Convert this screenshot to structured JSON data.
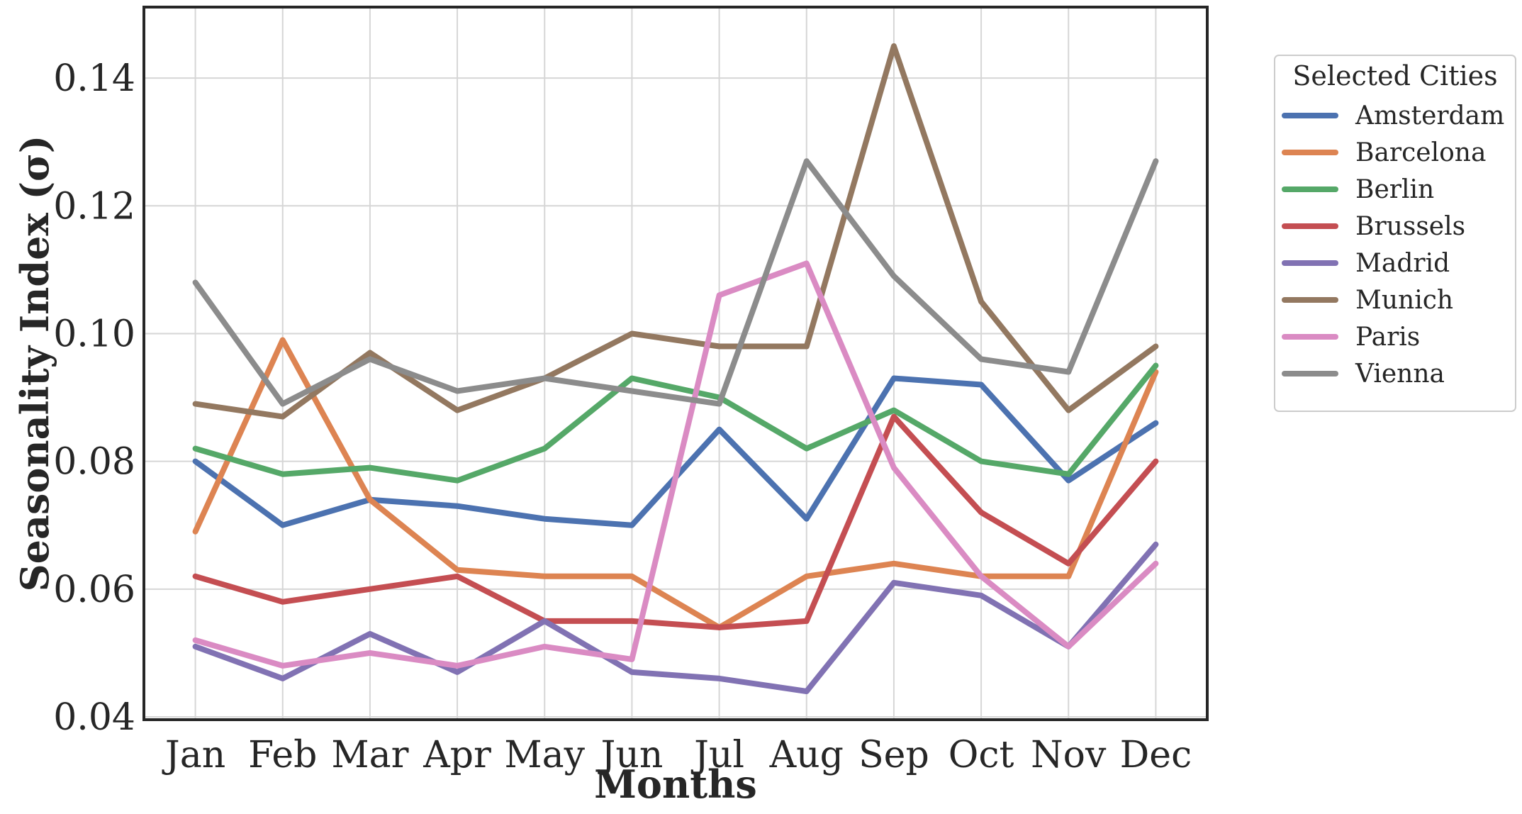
{
  "chart_data": {
    "type": "line",
    "title": "",
    "xlabel": "Months",
    "ylabel": "Seasonality Index (σ)",
    "categories": [
      "Jan",
      "Feb",
      "Mar",
      "Apr",
      "May",
      "Jun",
      "Jul",
      "Aug",
      "Sep",
      "Oct",
      "Nov",
      "Dec"
    ],
    "ylim": [
      0.04,
      0.15
    ],
    "yticks": [
      "0.04",
      "0.06",
      "0.08",
      "0.10",
      "0.12",
      "0.14"
    ],
    "grid": true,
    "legend": {
      "title": "Selected Cities",
      "placement": "outside-right-top"
    },
    "series": [
      {
        "name": "Amsterdam",
        "color": "#4c72b0",
        "values": [
          0.08,
          0.07,
          0.074,
          0.073,
          0.071,
          0.07,
          0.085,
          0.071,
          0.093,
          0.092,
          0.077,
          0.086
        ]
      },
      {
        "name": "Barcelona",
        "color": "#dd8452",
        "values": [
          0.069,
          0.099,
          0.074,
          0.063,
          0.062,
          0.062,
          0.054,
          0.062,
          0.064,
          0.062,
          0.062,
          0.094
        ]
      },
      {
        "name": "Berlin",
        "color": "#55a868",
        "values": [
          0.082,
          0.078,
          0.079,
          0.077,
          0.082,
          0.093,
          0.09,
          0.082,
          0.088,
          0.08,
          0.078,
          0.095
        ]
      },
      {
        "name": "Brussels",
        "color": "#c44e52",
        "values": [
          0.062,
          0.058,
          0.06,
          0.062,
          0.055,
          0.055,
          0.054,
          0.055,
          0.087,
          0.072,
          0.064,
          0.08
        ]
      },
      {
        "name": "Madrid",
        "color": "#8172b3",
        "values": [
          0.051,
          0.046,
          0.053,
          0.047,
          0.055,
          0.047,
          0.046,
          0.044,
          0.061,
          0.059,
          0.051,
          0.067
        ]
      },
      {
        "name": "Munich",
        "color": "#937860",
        "values": [
          0.089,
          0.087,
          0.097,
          0.088,
          0.093,
          0.1,
          0.098,
          0.098,
          0.145,
          0.105,
          0.088,
          0.098
        ]
      },
      {
        "name": "Paris",
        "color": "#da8bc3",
        "values": [
          0.052,
          0.048,
          0.05,
          0.048,
          0.051,
          0.049,
          0.106,
          0.111,
          0.079,
          0.062,
          0.051,
          0.064
        ]
      },
      {
        "name": "Vienna",
        "color": "#8c8c8c",
        "values": [
          0.108,
          0.089,
          0.096,
          0.091,
          0.093,
          0.091,
          0.089,
          0.127,
          0.109,
          0.096,
          0.094,
          0.127
        ]
      }
    ]
  }
}
